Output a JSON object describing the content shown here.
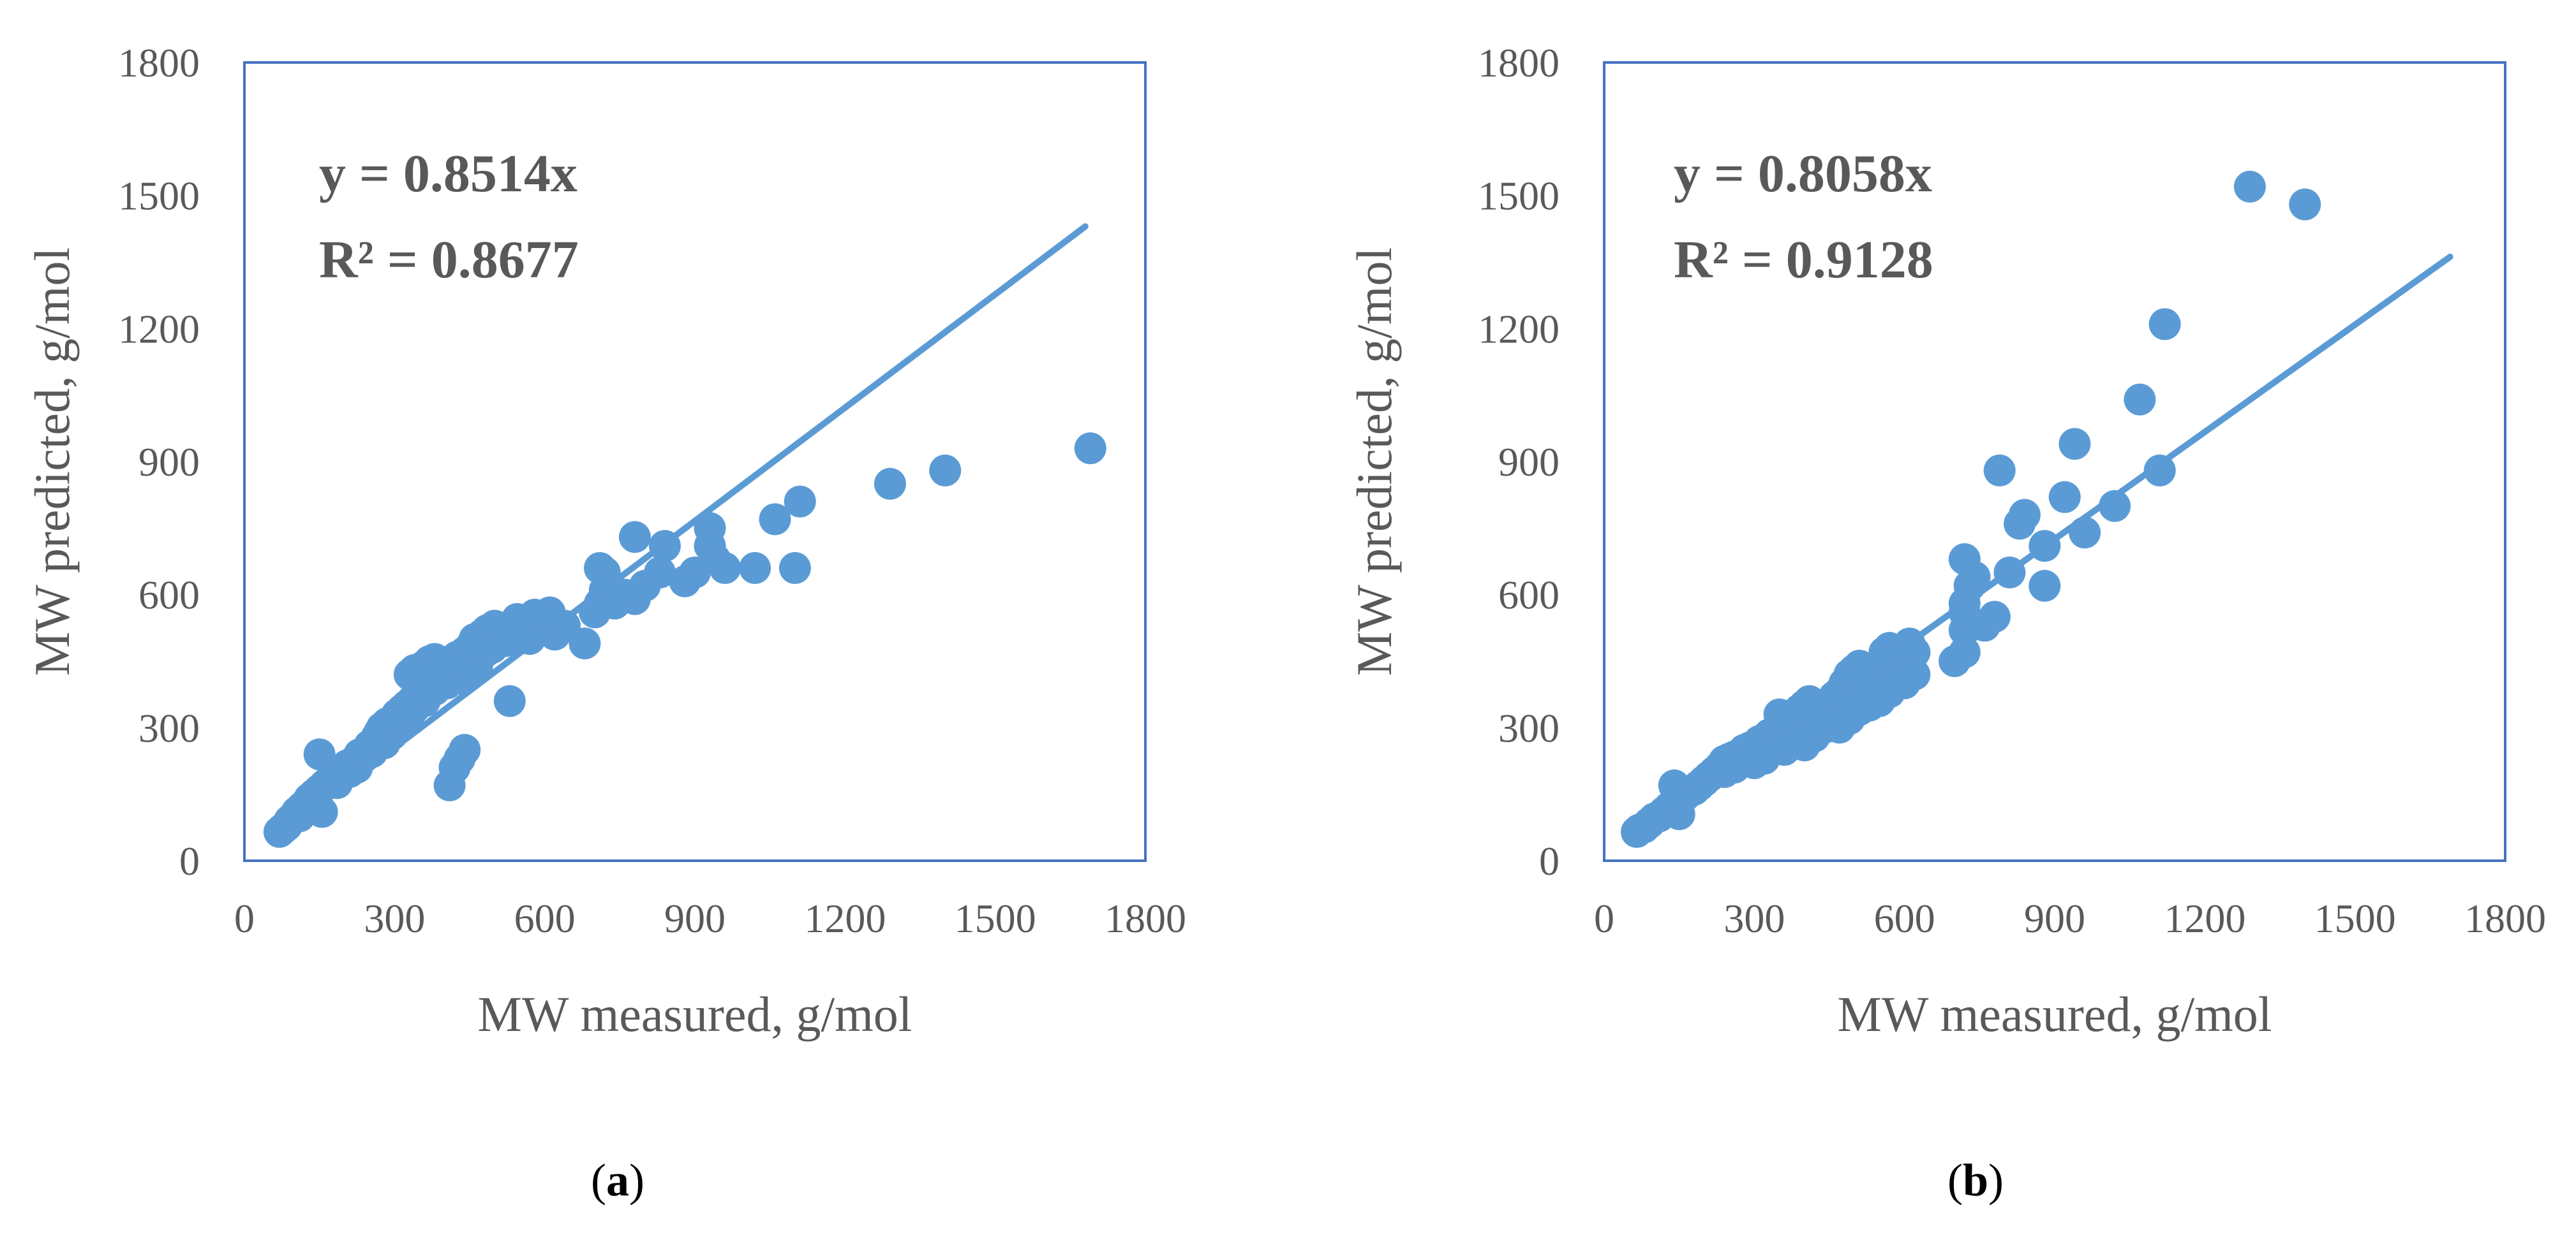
{
  "colors": {
    "marker": "#5b9bd5",
    "trendline": "#5b9bd5",
    "plot_border": "#4472c4",
    "text": "#595959"
  },
  "chart_data": [
    {
      "type": "scatter",
      "panel_label": "a",
      "xlabel": "MW measured, g/mol",
      "ylabel": "MW predicted, g/mol",
      "xlim": [
        0,
        1800
      ],
      "ylim": [
        0,
        1800
      ],
      "xticks": [
        0,
        300,
        600,
        900,
        1200,
        1500,
        1800
      ],
      "yticks": [
        0,
        300,
        600,
        900,
        1200,
        1500,
        1800
      ],
      "equation": "y = 0.8514x",
      "r_squared": "R² = 0.8677",
      "trendline": {
        "slope": 0.8514,
        "x_range": [
          70,
          1680
        ]
      },
      "points": [
        [
          70,
          65
        ],
        [
          75,
          70
        ],
        [
          80,
          75
        ],
        [
          85,
          80
        ],
        [
          90,
          90
        ],
        [
          95,
          95
        ],
        [
          100,
          100
        ],
        [
          105,
          110
        ],
        [
          110,
          100
        ],
        [
          115,
          120
        ],
        [
          120,
          125
        ],
        [
          125,
          115
        ],
        [
          130,
          140
        ],
        [
          135,
          130
        ],
        [
          140,
          150
        ],
        [
          145,
          120
        ],
        [
          150,
          160
        ],
        [
          155,
          110
        ],
        [
          160,
          170
        ],
        [
          165,
          175
        ],
        [
          150,
          240
        ],
        [
          170,
          180
        ],
        [
          175,
          185
        ],
        [
          180,
          190
        ],
        [
          185,
          175
        ],
        [
          190,
          200
        ],
        [
          200,
          205
        ],
        [
          205,
          215
        ],
        [
          210,
          200
        ],
        [
          220,
          225
        ],
        [
          225,
          210
        ],
        [
          230,
          240
        ],
        [
          240,
          235
        ],
        [
          245,
          250
        ],
        [
          250,
          260
        ],
        [
          255,
          245
        ],
        [
          260,
          270
        ],
        [
          265,
          280
        ],
        [
          270,
          290
        ],
        [
          275,
          300
        ],
        [
          280,
          265
        ],
        [
          285,
          310
        ],
        [
          290,
          300
        ],
        [
          295,
          285
        ],
        [
          300,
          320
        ],
        [
          305,
          330
        ],
        [
          310,
          305
        ],
        [
          315,
          340
        ],
        [
          320,
          315
        ],
        [
          325,
          350
        ],
        [
          330,
          330
        ],
        [
          335,
          360
        ],
        [
          340,
          345
        ],
        [
          345,
          380
        ],
        [
          350,
          370
        ],
        [
          355,
          390
        ],
        [
          360,
          360
        ],
        [
          365,
          400
        ],
        [
          370,
          390
        ],
        [
          375,
          410
        ],
        [
          380,
          385
        ],
        [
          385,
          420
        ],
        [
          390,
          405
        ],
        [
          395,
          430
        ],
        [
          400,
          440
        ],
        [
          405,
          400
        ],
        [
          410,
          450
        ],
        [
          415,
          420
        ],
        [
          420,
          435
        ],
        [
          425,
          460
        ],
        [
          430,
          445
        ],
        [
          435,
          410
        ],
        [
          440,
          470
        ],
        [
          445,
          455
        ],
        [
          450,
          480
        ],
        [
          455,
          465
        ],
        [
          460,
          500
        ],
        [
          465,
          440
        ],
        [
          470,
          490
        ],
        [
          475,
          510
        ],
        [
          480,
          470
        ],
        [
          485,
          520
        ],
        [
          490,
          500
        ],
        [
          495,
          480
        ],
        [
          500,
          530
        ],
        [
          510,
          510
        ],
        [
          520,
          495
        ],
        [
          525,
          520
        ],
        [
          530,
          500
        ],
        [
          540,
          530
        ],
        [
          545,
          545
        ],
        [
          550,
          520
        ],
        [
          560,
          540
        ],
        [
          570,
          500
        ],
        [
          580,
          555
        ],
        [
          590,
          520
        ],
        [
          600,
          540
        ],
        [
          610,
          560
        ],
        [
          620,
          510
        ],
        [
          640,
          530
        ],
        [
          350,
          430
        ],
        [
          360,
          440
        ],
        [
          370,
          450
        ],
        [
          380,
          455
        ],
        [
          330,
          420
        ],
        [
          340,
          430
        ],
        [
          430,
          230
        ],
        [
          440,
          250
        ],
        [
          420,
          210
        ],
        [
          410,
          170
        ],
        [
          530,
          360
        ],
        [
          680,
          490
        ],
        [
          700,
          560
        ],
        [
          710,
          580
        ],
        [
          710,
          660
        ],
        [
          720,
          650
        ],
        [
          720,
          610
        ],
        [
          740,
          580
        ],
        [
          760,
          600
        ],
        [
          780,
          590
        ],
        [
          780,
          730
        ],
        [
          800,
          620
        ],
        [
          830,
          650
        ],
        [
          840,
          710
        ],
        [
          880,
          630
        ],
        [
          900,
          650
        ],
        [
          930,
          750
        ],
        [
          930,
          710
        ],
        [
          940,
          680
        ],
        [
          960,
          660
        ],
        [
          1020,
          660
        ],
        [
          1060,
          770
        ],
        [
          1100,
          660
        ],
        [
          1110,
          810
        ],
        [
          1290,
          850
        ],
        [
          1400,
          880
        ],
        [
          1690,
          930
        ]
      ]
    },
    {
      "type": "scatter",
      "panel_label": "b",
      "xlabel": "MW measured, g/mol",
      "ylabel": "MW predicted, g/mol",
      "xlim": [
        0,
        1800
      ],
      "ylim": [
        0,
        1800
      ],
      "xticks": [
        0,
        300,
        600,
        900,
        1200,
        1500,
        1800
      ],
      "yticks": [
        0,
        300,
        600,
        900,
        1200,
        1500,
        1800
      ],
      "equation": "y = 0.8058x",
      "r_squared": "R² = 0.9128",
      "trendline": {
        "slope": 0.8058,
        "x_range": [
          70,
          1690
        ]
      },
      "points": [
        [
          65,
          65
        ],
        [
          70,
          70
        ],
        [
          80,
          75
        ],
        [
          90,
          85
        ],
        [
          100,
          95
        ],
        [
          110,
          100
        ],
        [
          120,
          110
        ],
        [
          130,
          120
        ],
        [
          140,
          130
        ],
        [
          140,
          170
        ],
        [
          150,
          140
        ],
        [
          150,
          105
        ],
        [
          160,
          145
        ],
        [
          170,
          155
        ],
        [
          180,
          160
        ],
        [
          190,
          170
        ],
        [
          200,
          180
        ],
        [
          210,
          190
        ],
        [
          220,
          200
        ],
        [
          230,
          210
        ],
        [
          240,
          225
        ],
        [
          250,
          230
        ],
        [
          260,
          235
        ],
        [
          270,
          240
        ],
        [
          280,
          250
        ],
        [
          290,
          255
        ],
        [
          300,
          260
        ],
        [
          310,
          270
        ],
        [
          320,
          275
        ],
        [
          330,
          285
        ],
        [
          340,
          290
        ],
        [
          350,
          300
        ],
        [
          360,
          310
        ],
        [
          370,
          320
        ],
        [
          380,
          330
        ],
        [
          390,
          340
        ],
        [
          400,
          350
        ],
        [
          410,
          360
        ],
        [
          420,
          330
        ],
        [
          430,
          320
        ],
        [
          440,
          345
        ],
        [
          450,
          355
        ],
        [
          460,
          370
        ],
        [
          470,
          380
        ],
        [
          480,
          400
        ],
        [
          490,
          420
        ],
        [
          500,
          430
        ],
        [
          510,
          440
        ],
        [
          520,
          380
        ],
        [
          530,
          390
        ],
        [
          540,
          420
        ],
        [
          550,
          440
        ],
        [
          560,
          470
        ],
        [
          570,
          480
        ],
        [
          580,
          460
        ],
        [
          590,
          420
        ],
        [
          600,
          480
        ],
        [
          610,
          490
        ],
        [
          620,
          470
        ],
        [
          240,
          200
        ],
        [
          260,
          210
        ],
        [
          300,
          220
        ],
        [
          320,
          230
        ],
        [
          350,
          330
        ],
        [
          360,
          250
        ],
        [
          380,
          270
        ],
        [
          400,
          260
        ],
        [
          420,
          280
        ],
        [
          440,
          300
        ],
        [
          470,
          300
        ],
        [
          490,
          320
        ],
        [
          510,
          340
        ],
        [
          530,
          350
        ],
        [
          550,
          360
        ],
        [
          570,
          380
        ],
        [
          600,
          400
        ],
        [
          620,
          420
        ],
        [
          700,
          450
        ],
        [
          720,
          470
        ],
        [
          720,
          520
        ],
        [
          720,
          560
        ],
        [
          720,
          580
        ],
        [
          730,
          620
        ],
        [
          720,
          680
        ],
        [
          740,
          640
        ],
        [
          760,
          530
        ],
        [
          780,
          550
        ],
        [
          790,
          880
        ],
        [
          810,
          650
        ],
        [
          830,
          760
        ],
        [
          840,
          780
        ],
        [
          880,
          620
        ],
        [
          880,
          710
        ],
        [
          920,
          820
        ],
        [
          940,
          940
        ],
        [
          960,
          740
        ],
        [
          1020,
          800
        ],
        [
          1070,
          1040
        ],
        [
          1110,
          880
        ],
        [
          1120,
          1210
        ],
        [
          1290,
          1520
        ],
        [
          1400,
          1480
        ]
      ]
    }
  ]
}
